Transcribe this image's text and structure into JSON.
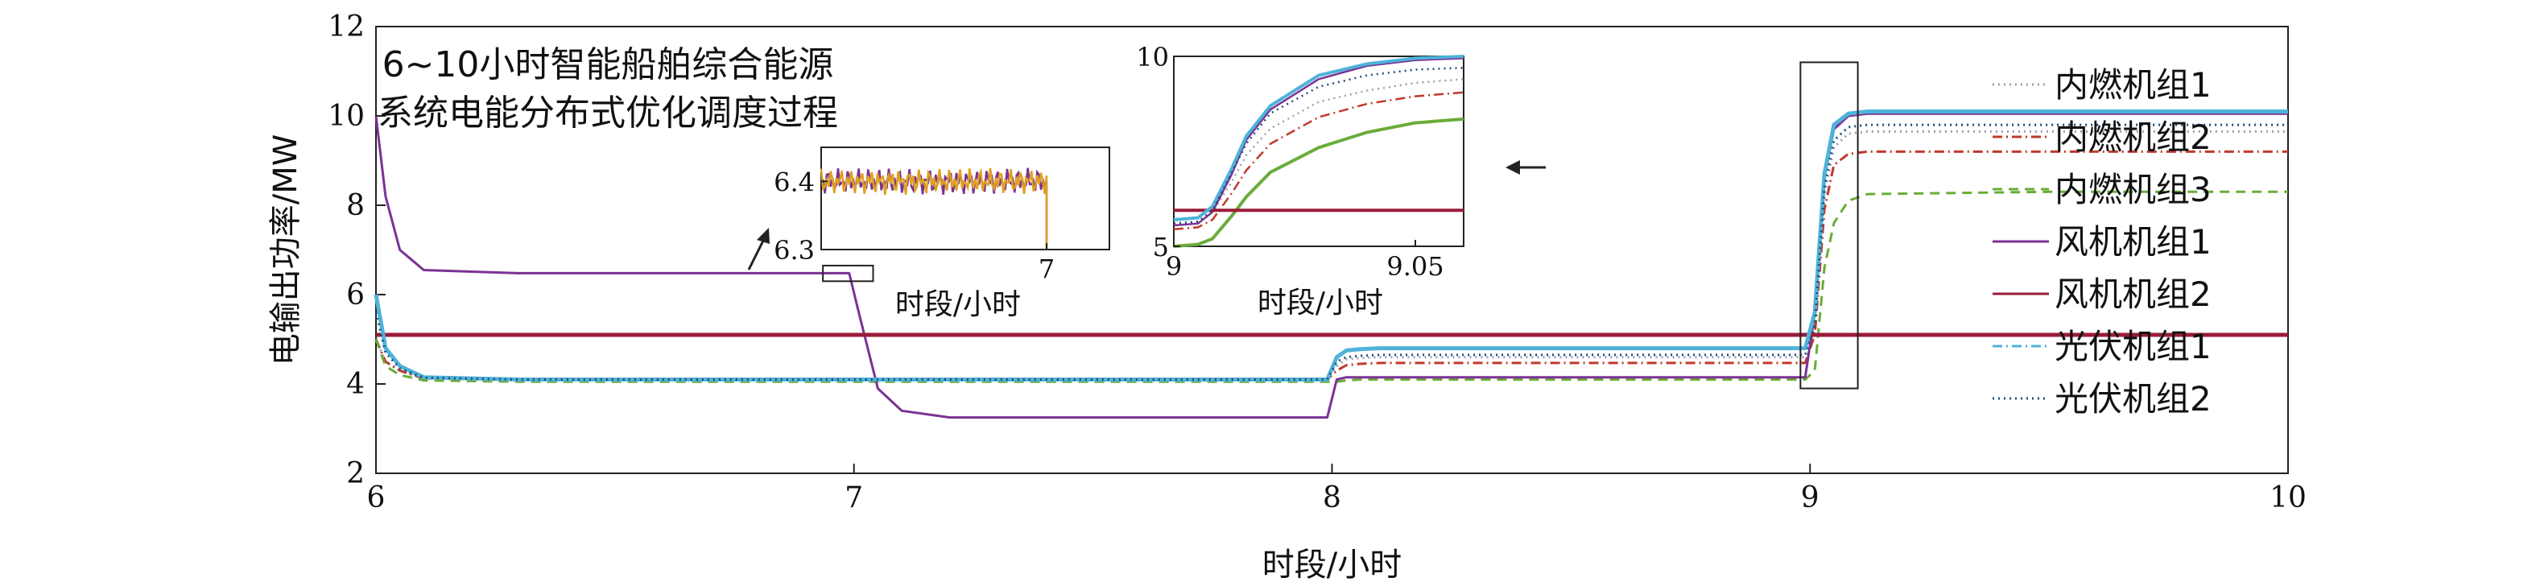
{
  "chart_data": [
    {
      "type": "line",
      "title": "6~10小时智能船舶综合能源\n系统电能分布式优化调度过程",
      "title_lines": [
        "6~10小时智能船舶综合能源",
        "系统电能分布式优化调度过程"
      ],
      "xlabel": "时段/小时",
      "ylabel": "电输出功率/MW",
      "xlim": [
        6,
        10
      ],
      "ylim": [
        2,
        12
      ],
      "xticks": [
        6,
        7,
        8,
        9,
        10
      ],
      "yticks": [
        2,
        4,
        6,
        8,
        10,
        12
      ],
      "legend_position": "right",
      "x": [
        6.0,
        6.02,
        6.05,
        6.1,
        6.3,
        6.6,
        6.9,
        6.99,
        7.01,
        7.05,
        7.1,
        7.2,
        7.5,
        7.9,
        7.99,
        8.01,
        8.03,
        8.06,
        8.1,
        8.5,
        8.99,
        9.01,
        9.03,
        9.05,
        9.08,
        9.12,
        9.5,
        10.0
      ],
      "series": [
        {
          "name": "内燃机组1",
          "color": "#9aa0b4",
          "style": "dotted",
          "values": [
            5.0,
            4.5,
            4.3,
            4.12,
            4.1,
            4.1,
            4.1,
            4.1,
            4.1,
            4.1,
            4.1,
            4.1,
            4.1,
            4.1,
            4.1,
            4.4,
            4.55,
            4.58,
            4.6,
            4.6,
            4.6,
            5.2,
            8.2,
            9.3,
            9.6,
            9.65,
            9.65,
            9.65
          ]
        },
        {
          "name": "内燃机组2",
          "color": "#c0392b",
          "style": "dashdot",
          "values": [
            5.0,
            4.5,
            4.3,
            4.12,
            4.1,
            4.1,
            4.1,
            4.1,
            4.1,
            4.1,
            4.1,
            4.1,
            4.1,
            4.1,
            4.1,
            4.3,
            4.42,
            4.45,
            4.47,
            4.47,
            4.47,
            5.1,
            7.9,
            8.9,
            9.15,
            9.2,
            9.2,
            9.2
          ]
        },
        {
          "name": "内燃机组3",
          "color": "#6aac3a",
          "style": "dashed",
          "values": [
            5.0,
            4.4,
            4.2,
            4.08,
            4.05,
            4.05,
            4.05,
            4.05,
            4.05,
            4.05,
            4.05,
            4.05,
            4.05,
            4.05,
            4.05,
            4.05,
            4.08,
            4.1,
            4.1,
            4.1,
            4.1,
            4.3,
            6.6,
            7.6,
            8.1,
            8.25,
            8.3,
            8.3
          ]
        },
        {
          "name": "风机机组1",
          "color": "#7b3294",
          "style": "solid",
          "values": [
            10.0,
            8.2,
            7.0,
            6.55,
            6.48,
            6.48,
            6.48,
            6.48,
            5.6,
            3.9,
            3.4,
            3.25,
            3.25,
            3.25,
            3.25,
            4.1,
            4.15,
            4.15,
            4.15,
            4.15,
            4.15,
            5.6,
            8.6,
            9.7,
            10.0,
            10.05,
            10.05,
            10.05
          ]
        },
        {
          "name": "风机机组2",
          "color": "#9b1b3a",
          "style": "solid",
          "values": [
            5.1,
            5.1,
            5.1,
            5.1,
            5.1,
            5.1,
            5.1,
            5.1,
            5.1,
            5.1,
            5.1,
            5.1,
            5.1,
            5.1,
            5.1,
            5.1,
            5.1,
            5.1,
            5.1,
            5.1,
            5.1,
            5.1,
            5.1,
            5.1,
            5.1,
            5.1,
            5.1,
            5.1
          ]
        },
        {
          "name": "光伏机组1",
          "color": "#4fb3d9",
          "style": "dashdot",
          "values": [
            6.0,
            4.8,
            4.4,
            4.15,
            4.1,
            4.1,
            4.1,
            4.1,
            4.1,
            4.1,
            4.1,
            4.1,
            4.1,
            4.1,
            4.1,
            4.6,
            4.75,
            4.78,
            4.8,
            4.8,
            4.8,
            5.6,
            8.7,
            9.8,
            10.05,
            10.1,
            10.1,
            10.1
          ]
        },
        {
          "name": "光伏机组2",
          "color": "#1f4e79",
          "style": "dotted",
          "values": [
            5.6,
            4.7,
            4.35,
            4.14,
            4.1,
            4.1,
            4.1,
            4.1,
            4.1,
            4.1,
            4.1,
            4.1,
            4.1,
            4.1,
            4.1,
            4.5,
            4.6,
            4.63,
            4.65,
            4.65,
            4.65,
            5.3,
            8.4,
            9.45,
            9.75,
            9.8,
            9.8,
            9.8
          ]
        }
      ]
    },
    {
      "type": "line",
      "xlabel": "时段/小时",
      "xlim": [
        6.98,
        7.0
      ],
      "ylim": [
        6.3,
        6.45
      ],
      "xticks": [
        7
      ],
      "yticks": [
        6.3,
        6.4
      ],
      "series": [
        {
          "name": "风机机组1",
          "color": "#7b3294",
          "level": 6.4
        },
        {
          "name": "光伏机组1",
          "color": "#e0a020",
          "level": 6.4
        }
      ]
    },
    {
      "type": "line",
      "xlabel": "时段/小时",
      "xlim": [
        9.0,
        9.06
      ],
      "ylim": [
        5,
        10
      ],
      "xticks": [
        9,
        9.05
      ],
      "yticks": [
        5,
        10
      ],
      "x": [
        9.0,
        9.005,
        9.008,
        9.012,
        9.015,
        9.02,
        9.03,
        9.04,
        9.05,
        9.06
      ],
      "series": [
        {
          "name": "内燃机组1",
          "color": "#9aa0b4",
          "style": "dotted",
          "values": [
            5.6,
            5.65,
            5.9,
            6.7,
            7.4,
            8.1,
            8.8,
            9.1,
            9.3,
            9.4
          ]
        },
        {
          "name": "内燃机组2",
          "color": "#c0392b",
          "style": "dashdot",
          "values": [
            5.45,
            5.5,
            5.7,
            6.4,
            7.0,
            7.7,
            8.4,
            8.75,
            8.95,
            9.05
          ]
        },
        {
          "name": "内燃机组3",
          "color": "#6aac3a",
          "style": "solid",
          "values": [
            5.0,
            5.05,
            5.2,
            5.8,
            6.3,
            6.95,
            7.6,
            8.0,
            8.25,
            8.35
          ]
        },
        {
          "name": "风机机组1",
          "color": "#7b3294",
          "style": "solid",
          "values": [
            5.55,
            5.6,
            5.9,
            6.9,
            7.8,
            8.6,
            9.4,
            9.75,
            9.9,
            9.95
          ]
        },
        {
          "name": "风机机组2",
          "color": "#9b1b3a",
          "style": "solid",
          "values": [
            5.95,
            5.95,
            5.95,
            5.95,
            5.95,
            5.95,
            5.95,
            5.95,
            5.95,
            5.95
          ]
        },
        {
          "name": "光伏机组1",
          "color": "#4fb3d9",
          "style": "solid",
          "values": [
            5.7,
            5.75,
            6.05,
            7.05,
            7.9,
            8.7,
            9.5,
            9.8,
            9.95,
            10.0
          ]
        },
        {
          "name": "光伏机组2",
          "color": "#1f4e79",
          "style": "dotted",
          "values": [
            5.6,
            5.65,
            5.95,
            6.95,
            7.7,
            8.5,
            9.2,
            9.5,
            9.65,
            9.7
          ]
        }
      ]
    }
  ]
}
